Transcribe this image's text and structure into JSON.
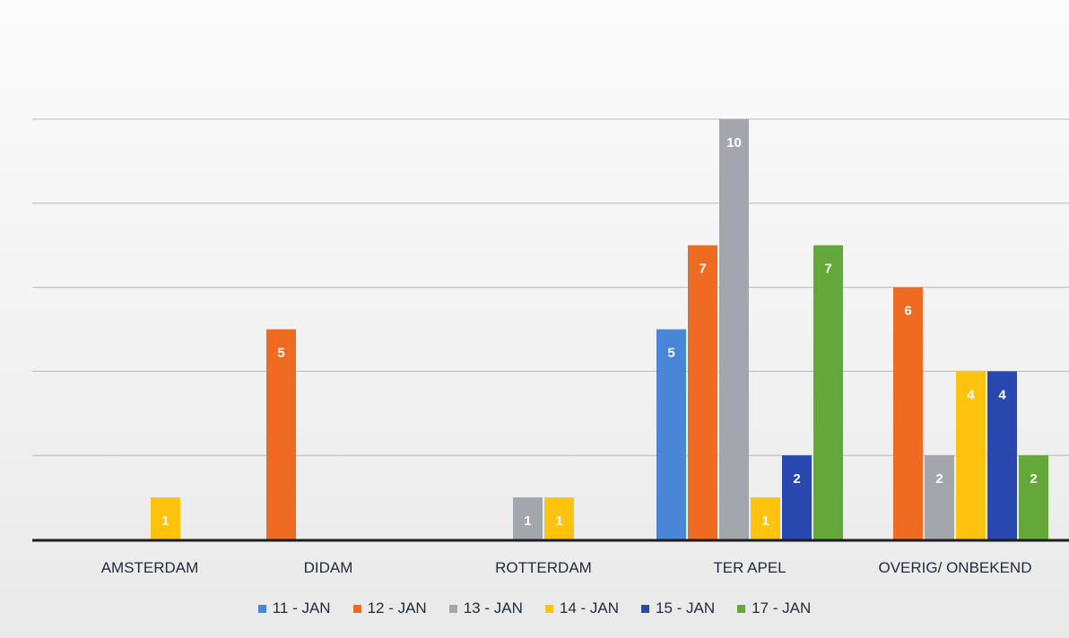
{
  "chart_data": {
    "type": "bar",
    "title": "",
    "xlabel": "",
    "ylabel": "",
    "ylim": [
      0,
      10
    ],
    "grid": true,
    "legend_position": "bottom",
    "categories": [
      "AMSTERDAM",
      "DIDAM",
      "ROTTERDAM",
      "TER APEL",
      "OVERIG/ ONBEKEND"
    ],
    "series": [
      {
        "name": "11 - JAN",
        "color": "#4a86d8",
        "values": [
          0,
          0,
          0,
          5,
          0
        ]
      },
      {
        "name": "12 - JAN",
        "color": "#ef6b21",
        "values": [
          0,
          5,
          0,
          7,
          6
        ]
      },
      {
        "name": "13 - JAN",
        "color": "#a3a7ad",
        "values": [
          0,
          0,
          1,
          10,
          2
        ]
      },
      {
        "name": "14 - JAN",
        "color": "#ffc20e",
        "values": [
          1,
          0,
          1,
          1,
          4
        ]
      },
      {
        "name": "15 - JAN",
        "color": "#2848b0",
        "values": [
          0,
          0,
          0,
          2,
          4
        ]
      },
      {
        "name": "17 - JAN",
        "color": "#65a83a",
        "values": [
          0,
          0,
          0,
          7,
          2
        ]
      }
    ]
  }
}
